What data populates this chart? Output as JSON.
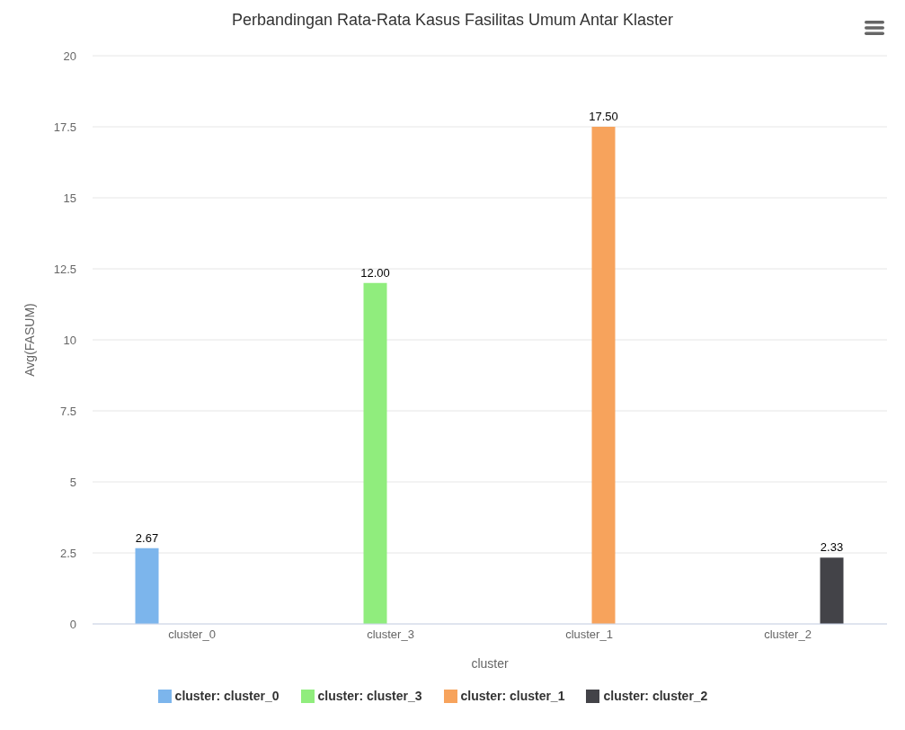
{
  "chart_data": {
    "type": "bar",
    "title": "Perbandingan Rata-Rata Kasus Fasilitas Umum Antar Klaster",
    "xlabel": "cluster",
    "ylabel": "Avg(FASUM)",
    "categories": [
      "cluster_0",
      "cluster_3",
      "cluster_1",
      "cluster_2"
    ],
    "series": [
      {
        "name": "cluster: cluster_0",
        "color": "#7cb5ec",
        "values": [
          2.67,
          null,
          null,
          null
        ],
        "value_labels": [
          "2.67",
          null,
          null,
          null
        ]
      },
      {
        "name": "cluster: cluster_3",
        "color": "#90ed7d",
        "values": [
          null,
          12,
          null,
          null
        ],
        "value_labels": [
          null,
          "12.00",
          null,
          null
        ]
      },
      {
        "name": "cluster: cluster_1",
        "color": "#f7a35c",
        "values": [
          null,
          null,
          17.5,
          null
        ],
        "value_labels": [
          null,
          null,
          "17.50",
          null
        ]
      },
      {
        "name": "cluster: cluster_2",
        "color": "#434348",
        "values": [
          null,
          null,
          null,
          2.33
        ],
        "value_labels": [
          null,
          null,
          null,
          "2.33"
        ]
      }
    ],
    "ylim": [
      0,
      20
    ],
    "yticks": [
      0,
      2.5,
      5,
      7.5,
      10,
      12.5,
      15,
      17.5,
      20
    ],
    "grid": "y",
    "legend": "bottom"
  }
}
